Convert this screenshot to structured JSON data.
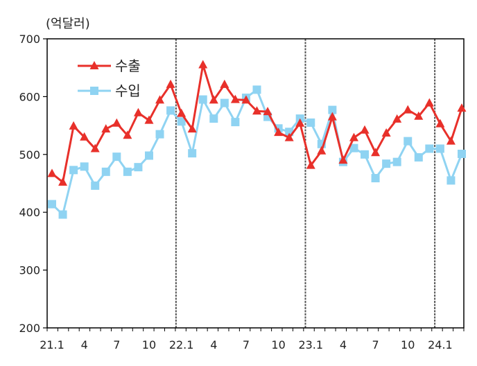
{
  "chart_data": {
    "type": "line",
    "unit_label": "(억달러)",
    "ylim": [
      200,
      700
    ],
    "yticks": [
      200,
      300,
      400,
      500,
      600,
      700
    ],
    "x_tick_labels": [
      "21.1",
      "4",
      "7",
      "10",
      "22.1",
      "4",
      "7",
      "10",
      "23.1",
      "4",
      "7",
      "10",
      "24.1"
    ],
    "x_tick_index": [
      0,
      3,
      6,
      9,
      12,
      15,
      18,
      21,
      24,
      27,
      30,
      33,
      36
    ],
    "year_dividers_after_index": [
      11.5,
      23.5,
      35.5
    ],
    "legend_position": "top-left",
    "colors": {
      "export": "#e8302a",
      "import": "#8fd3f2"
    },
    "series": [
      {
        "name": "수출",
        "color": "#e8302a",
        "marker": "triangle",
        "values": [
          467,
          452,
          549,
          530,
          510,
          544,
          554,
          533,
          572,
          559,
          594,
          621,
          571,
          544,
          655,
          594,
          621,
          595,
          594,
          575,
          574,
          538,
          529,
          554,
          481,
          506,
          565,
          490,
          529,
          542,
          503,
          537,
          561,
          577,
          566,
          589,
          553,
          523,
          580
        ]
      },
      {
        "name": "수입",
        "color": "#8fd3f2",
        "marker": "square",
        "values": [
          414,
          396,
          473,
          479,
          446,
          470,
          496,
          470,
          478,
          498,
          535,
          576,
          557,
          502,
          595,
          562,
          589,
          556,
          598,
          612,
          565,
          545,
          539,
          562,
          555,
          518,
          577,
          487,
          511,
          500,
          459,
          484,
          487,
          523,
          495,
          510,
          510,
          455,
          501
        ]
      }
    ]
  }
}
